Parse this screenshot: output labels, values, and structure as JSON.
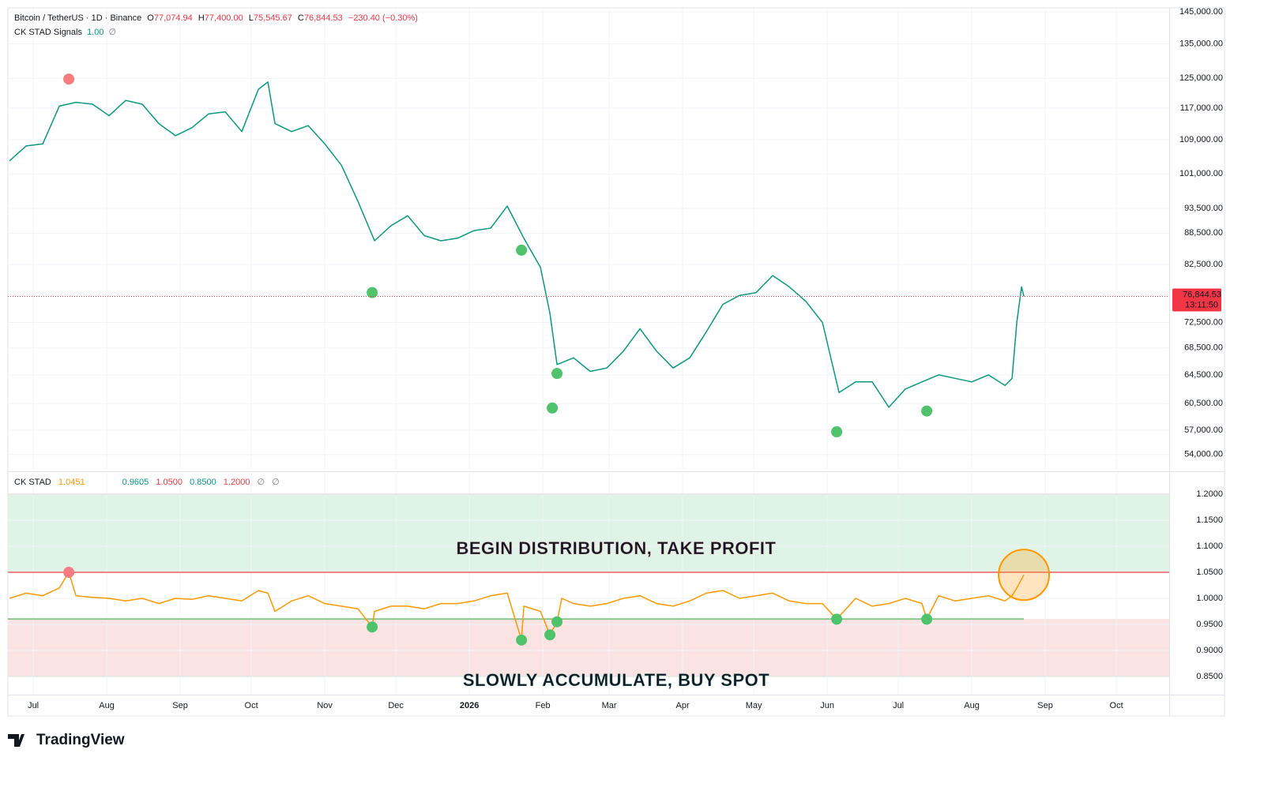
{
  "chart_data": [
    {
      "type": "line",
      "title": "Bitcoin / TetherUS · 1D · Binance",
      "ohlc": [
        {
          "key": "O",
          "label": "77,074.94"
        },
        {
          "key": "H",
          "label": "77,400.00"
        },
        {
          "key": "L",
          "label": "75,545.67"
        },
        {
          "key": "C",
          "label": "76,844.53"
        }
      ],
      "change": "−230.40 (−0.30%)",
      "indicator": {
        "name": "CK STAD Signals",
        "label": "1.00"
      },
      "icon": "∅",
      "x": [
        -10,
        -3,
        4,
        11,
        18,
        25,
        32,
        39,
        46,
        53,
        60,
        67,
        74,
        81,
        88,
        95,
        99,
        102,
        109,
        116,
        123,
        130,
        137,
        144,
        151,
        158,
        165,
        172,
        179,
        186,
        193,
        200,
        207,
        214,
        218,
        221,
        228,
        235,
        242,
        249,
        256,
        263,
        270,
        277,
        284,
        291,
        298,
        305,
        312,
        319,
        326,
        333,
        340,
        347,
        354,
        361,
        368,
        375,
        382,
        389,
        396,
        403,
        410,
        413,
        415,
        417,
        418
      ],
      "values": [
        104000,
        107500,
        108000,
        117500,
        118500,
        118000,
        115000,
        119000,
        118000,
        113000,
        110000,
        112000,
        115500,
        116000,
        111000,
        122000,
        124000,
        113000,
        111000,
        112500,
        108000,
        103000,
        95000,
        87000,
        90000,
        92000,
        88000,
        87000,
        87500,
        89000,
        89500,
        94000,
        87500,
        82000,
        74000,
        66000,
        67000,
        65000,
        65500,
        68000,
        71500,
        68000,
        65500,
        67000,
        71000,
        75500,
        77000,
        77500,
        80500,
        78500,
        76000,
        72500,
        62000,
        63500,
        63500,
        60000,
        62500,
        63500,
        64500,
        64000,
        63500,
        64500,
        63000,
        64000,
        72500,
        78500,
        76844.53
      ],
      "color": "#089981",
      "signals": [
        {
          "x": 15,
          "y": 124800,
          "color": "#f77c80"
        },
        {
          "x": 143,
          "y": 77500,
          "color": "#4fc36b"
        },
        {
          "x": 206,
          "y": 85200,
          "color": "#4fc36b"
        },
        {
          "x": 219,
          "y": 59900,
          "color": "#4fc36b"
        },
        {
          "x": 221,
          "y": 64700,
          "color": "#4fc36b"
        },
        {
          "x": 339,
          "y": 56800,
          "color": "#4fc36b"
        },
        {
          "x": 377,
          "y": 59500,
          "color": "#4fc36b"
        }
      ],
      "last": {
        "value": 76844.53,
        "label": "76,844.53",
        "countdown": "13:11:50",
        "color": "#f23645"
      },
      "xlim": [
        -10.7,
        479.3
      ],
      "xticks": [
        {
          "value": 0,
          "label": "Jul"
        },
        {
          "value": 31,
          "label": "Aug"
        },
        {
          "value": 62,
          "label": "Sep"
        },
        {
          "value": 92,
          "label": "Oct"
        },
        {
          "value": 123,
          "label": "Nov"
        },
        {
          "value": 153,
          "label": "Dec"
        },
        {
          "value": 184,
          "label": "2026",
          "emphasis": true
        },
        {
          "value": 215,
          "label": "Feb"
        },
        {
          "value": 243,
          "label": "Mar"
        },
        {
          "value": 274,
          "label": "Apr"
        },
        {
          "value": 304,
          "label": "May"
        },
        {
          "value": 335,
          "label": "Jun"
        },
        {
          "value": 365,
          "label": "Jul"
        },
        {
          "value": 396,
          "label": "Aug"
        },
        {
          "value": 427,
          "label": "Sep"
        },
        {
          "value": 457,
          "label": "Oct"
        }
      ],
      "ylim": [
        52200,
        146300
      ],
      "log": true,
      "yticks": [
        {
          "value": 145000,
          "label": "145,000.00"
        },
        {
          "value": 135000,
          "label": "135,000.00"
        },
        {
          "value": 125000,
          "label": "125,000.00"
        },
        {
          "value": 117000,
          "label": "117,000.00"
        },
        {
          "value": 109000,
          "label": "109,000.00"
        },
        {
          "value": 101000,
          "label": "101,000.00"
        },
        {
          "value": 93500,
          "label": "93,500.00"
        },
        {
          "value": 88500,
          "label": "88,500.00"
        },
        {
          "value": 82500,
          "label": "82,500.00"
        },
        {
          "value": 72500,
          "label": "72,500.00"
        },
        {
          "value": 68500,
          "label": "68,500.00"
        },
        {
          "value": 64500,
          "label": "64,500.00"
        },
        {
          "value": 60500,
          "label": "60,500.00"
        },
        {
          "value": 57000,
          "label": "57,000.00"
        },
        {
          "value": 54000,
          "label": "54,000.00"
        }
      ],
      "grid": true
    },
    {
      "type": "line",
      "title": "CK STAD",
      "value_label": "1.0451",
      "x": [
        -10,
        -3,
        4,
        11,
        15,
        18,
        25,
        32,
        39,
        46,
        53,
        60,
        67,
        74,
        81,
        88,
        95,
        99,
        102,
        109,
        116,
        123,
        130,
        137,
        143,
        144,
        151,
        158,
        165,
        172,
        179,
        186,
        193,
        200,
        206,
        207,
        214,
        218,
        221,
        223,
        228,
        235,
        242,
        249,
        256,
        263,
        270,
        277,
        284,
        291,
        298,
        305,
        312,
        319,
        326,
        333,
        339,
        347,
        354,
        361,
        368,
        375,
        377,
        382,
        389,
        396,
        403,
        410,
        413,
        415,
        418
      ],
      "values": [
        1.0,
        1.01,
        1.005,
        1.02,
        1.05,
        1.005,
        1.002,
        1.0,
        0.995,
        1.0,
        0.99,
        1.0,
        0.998,
        1.005,
        1.0,
        0.995,
        1.015,
        1.01,
        0.975,
        0.995,
        1.005,
        0.99,
        0.985,
        0.98,
        0.945,
        0.975,
        0.985,
        0.985,
        0.98,
        0.99,
        0.99,
        0.995,
        1.005,
        1.01,
        0.92,
        0.985,
        0.975,
        0.93,
        0.955,
        1.0,
        0.99,
        0.985,
        0.99,
        1.0,
        1.005,
        0.99,
        0.985,
        0.995,
        1.01,
        1.015,
        1.0,
        1.005,
        1.01,
        0.995,
        0.99,
        0.99,
        0.96,
        1.0,
        0.985,
        0.99,
        1.0,
        0.99,
        0.96,
        1.005,
        0.995,
        1.0,
        1.005,
        0.995,
        1.005,
        1.02,
        1.0451
      ],
      "color": "#ff9800",
      "signals": [
        {
          "x": 15,
          "y": 1.05,
          "color": "#f77c80"
        },
        {
          "x": 143,
          "y": 0.945,
          "color": "#4fc36b"
        },
        {
          "x": 206,
          "y": 0.92,
          "color": "#4fc36b"
        },
        {
          "x": 218,
          "y": 0.93,
          "color": "#4fc36b"
        },
        {
          "x": 221,
          "y": 0.955,
          "color": "#4fc36b"
        },
        {
          "x": 339,
          "y": 0.96,
          "color": "#4fc36b"
        },
        {
          "x": 377,
          "y": 0.96,
          "color": "#4fc36b"
        }
      ],
      "levels": [
        {
          "value": 0.9605,
          "label": "0.9605",
          "color": "#4caf50"
        },
        {
          "value": 1.05,
          "label": "1.0500",
          "color": "#f23645"
        },
        {
          "value": 0.85,
          "label": "0.8500",
          "color": "#4caf50"
        },
        {
          "value": 1.2,
          "label": "1.2000",
          "color": "#f23645"
        }
      ],
      "zones": [
        {
          "text": "BEGIN DISTRIBUTION, TAKE PROFIT",
          "color": "#fbe3e3",
          "text_color": "#f2a3b3"
        },
        {
          "text": "SLOWLY ACCUMULATE, BUY SPOT",
          "color": "#dff4e6",
          "text_color": "#86d5cb"
        }
      ],
      "icons": [
        "∅",
        "∅"
      ],
      "ylim": [
        0.8152,
        1.2394
      ],
      "yticks": [
        {
          "value": 1.2,
          "label": "1.2000"
        },
        {
          "value": 1.15,
          "label": "1.1500"
        },
        {
          "value": 1.1,
          "label": "1.1000"
        },
        {
          "value": 1.05,
          "label": "1.0500"
        },
        {
          "value": 1.0,
          "label": "1.0000"
        },
        {
          "value": 0.95,
          "label": "0.9500"
        },
        {
          "value": 0.9,
          "label": "0.9000"
        },
        {
          "value": 0.85,
          "label": "0.8500"
        }
      ],
      "grid": true
    }
  ],
  "brand": "TradingView"
}
